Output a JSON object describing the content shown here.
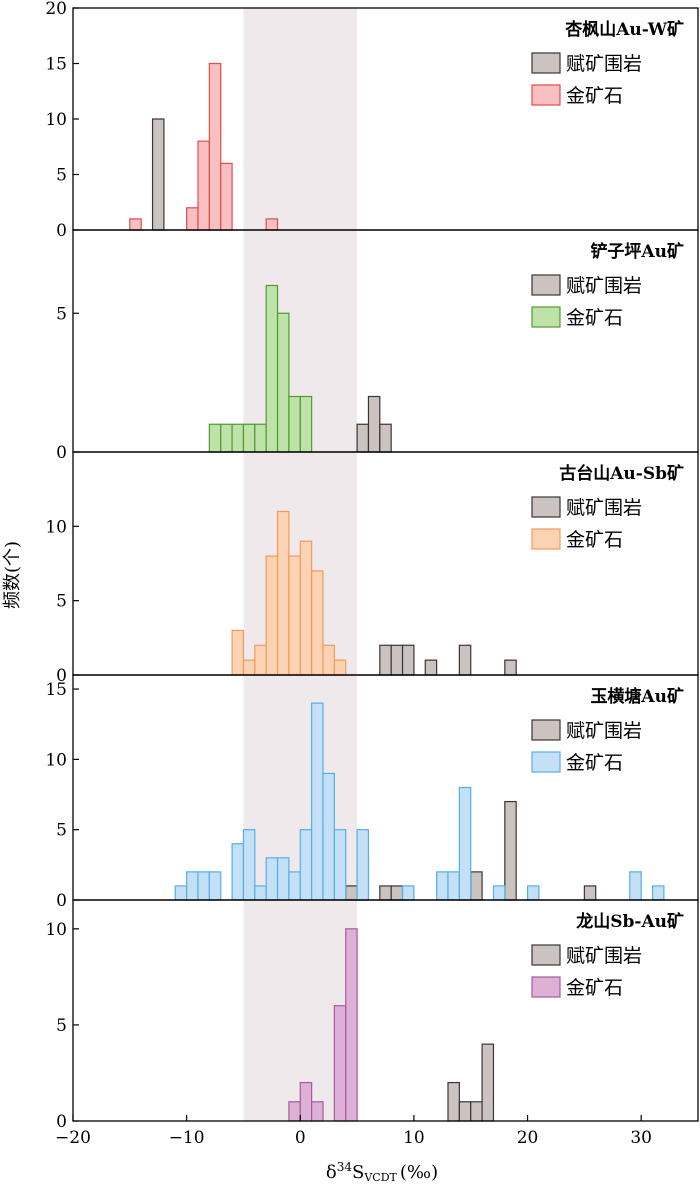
{
  "chart_data": {
    "type": "bar",
    "shared_x_axis": {
      "label_main": "δ",
      "label_sup": "34",
      "label_s": "S",
      "label_sub": "VCDT",
      "label_unit": "(‰)",
      "xlim": [
        -20,
        35
      ],
      "ticks": [
        -20,
        -10,
        0,
        10,
        20,
        30
      ],
      "tick_labels": [
        "−20",
        "−10",
        "0",
        "10",
        "20",
        "30"
      ],
      "bin_width": 1
    },
    "y_axis_label": "频数(个)",
    "shaded_band": {
      "x_range": [
        -5,
        5
      ],
      "color": "#efe9ec"
    },
    "legend_labels": {
      "host_rock": "赋矿围岩",
      "ore": "金矿石"
    },
    "colors": {
      "host_rock_fill": "#cbc3c0",
      "host_rock_edge": "#3d3533",
      "ore_fill": [
        "#f8c0c0",
        "#bfe2a8",
        "#fbd2b2",
        "#c3e0f6",
        "#ddb1d6"
      ],
      "ore_edge": [
        "#e24c4c",
        "#4f9a35",
        "#f09b5c",
        "#56aee6",
        "#a55aa0"
      ]
    },
    "panels": [
      {
        "title": "杏枫山Au-W矿",
        "ylim": [
          0,
          20
        ],
        "yticks": [
          0,
          5,
          10,
          15,
          20
        ],
        "host_rock": [
          {
            "bin": -13,
            "count": 10
          }
        ],
        "ore": [
          {
            "bin": -15,
            "count": 1
          },
          {
            "bin": -10,
            "count": 2
          },
          {
            "bin": -9,
            "count": 8
          },
          {
            "bin": -8,
            "count": 15
          },
          {
            "bin": -7,
            "count": 6
          },
          {
            "bin": -3,
            "count": 1
          }
        ]
      },
      {
        "title": "铲子坪Au矿",
        "ylim": [
          0,
          8
        ],
        "yticks": [
          0,
          5
        ],
        "host_rock": [
          {
            "bin": 5,
            "count": 1
          },
          {
            "bin": 6,
            "count": 2
          },
          {
            "bin": 7,
            "count": 1
          }
        ],
        "ore": [
          {
            "bin": -8,
            "count": 1
          },
          {
            "bin": -7,
            "count": 1
          },
          {
            "bin": -6,
            "count": 1
          },
          {
            "bin": -5,
            "count": 1
          },
          {
            "bin": -4,
            "count": 1
          },
          {
            "bin": -3,
            "count": 6
          },
          {
            "bin": -2,
            "count": 5
          },
          {
            "bin": -1,
            "count": 2
          },
          {
            "bin": 0,
            "count": 2
          }
        ]
      },
      {
        "title": "古台山Au-Sb矿",
        "ylim": [
          0,
          15
        ],
        "yticks": [
          0,
          5,
          10
        ],
        "host_rock": [
          {
            "bin": 7,
            "count": 2
          },
          {
            "bin": 8,
            "count": 2
          },
          {
            "bin": 9,
            "count": 2
          },
          {
            "bin": 11,
            "count": 1
          },
          {
            "bin": 14,
            "count": 2
          },
          {
            "bin": 18,
            "count": 1
          }
        ],
        "ore": [
          {
            "bin": -6,
            "count": 3
          },
          {
            "bin": -5,
            "count": 1
          },
          {
            "bin": -4,
            "count": 2
          },
          {
            "bin": -3,
            "count": 8
          },
          {
            "bin": -2,
            "count": 11
          },
          {
            "bin": -1,
            "count": 8
          },
          {
            "bin": 0,
            "count": 9
          },
          {
            "bin": 1,
            "count": 7
          },
          {
            "bin": 2,
            "count": 2
          },
          {
            "bin": 3,
            "count": 1
          }
        ]
      },
      {
        "title": "玉横塘Au矿",
        "ylim": [
          0,
          16
        ],
        "yticks": [
          0,
          5,
          10,
          15
        ],
        "host_rock": [
          {
            "bin": 4,
            "count": 1
          },
          {
            "bin": 5,
            "count": 3
          },
          {
            "bin": 7,
            "count": 1
          },
          {
            "bin": 8,
            "count": 1
          },
          {
            "bin": 15,
            "count": 2
          },
          {
            "bin": 18,
            "count": 7
          },
          {
            "bin": 25,
            "count": 1
          }
        ],
        "ore": [
          {
            "bin": -11,
            "count": 1
          },
          {
            "bin": -10,
            "count": 2
          },
          {
            "bin": -9,
            "count": 2
          },
          {
            "bin": -8,
            "count": 2
          },
          {
            "bin": -6,
            "count": 4
          },
          {
            "bin": -5,
            "count": 5
          },
          {
            "bin": -4,
            "count": 1
          },
          {
            "bin": -3,
            "count": 3
          },
          {
            "bin": -2,
            "count": 3
          },
          {
            "bin": -1,
            "count": 2
          },
          {
            "bin": 0,
            "count": 5
          },
          {
            "bin": 1,
            "count": 14
          },
          {
            "bin": 2,
            "count": 9
          },
          {
            "bin": 3,
            "count": 5
          },
          {
            "bin": 5,
            "count": 5
          },
          {
            "bin": 9,
            "count": 1
          },
          {
            "bin": 12,
            "count": 2
          },
          {
            "bin": 13,
            "count": 2
          },
          {
            "bin": 14,
            "count": 8
          },
          {
            "bin": 17,
            "count": 1
          },
          {
            "bin": 20,
            "count": 1
          },
          {
            "bin": 29,
            "count": 2
          },
          {
            "bin": 31,
            "count": 1
          }
        ]
      },
      {
        "title": "龙山Sb-Au矿",
        "ylim": [
          0,
          11.5
        ],
        "yticks": [
          0,
          5,
          10
        ],
        "host_rock": [
          {
            "bin": 13,
            "count": 2
          },
          {
            "bin": 14,
            "count": 1
          },
          {
            "bin": 15,
            "count": 1
          },
          {
            "bin": 16,
            "count": 4
          }
        ],
        "ore": [
          {
            "bin": -1,
            "count": 1
          },
          {
            "bin": 0,
            "count": 2
          },
          {
            "bin": 1,
            "count": 1
          },
          {
            "bin": 3,
            "count": 6
          },
          {
            "bin": 4,
            "count": 10
          }
        ]
      }
    ]
  }
}
